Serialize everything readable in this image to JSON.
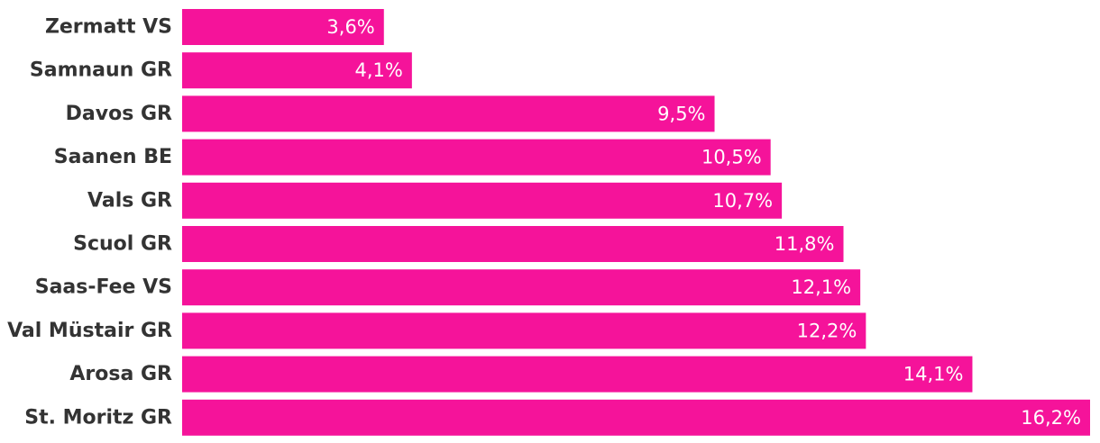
{
  "chart_data": {
    "type": "bar",
    "orientation": "horizontal",
    "categories": [
      "Zermatt VS",
      "Samnaun GR",
      "Davos GR",
      "Saanen BE",
      "Vals GR",
      "Scuol GR",
      "Saas-Fee VS",
      "Val Müstair GR",
      "Arosa GR",
      "St. Moritz GR"
    ],
    "values": [
      3.6,
      4.1,
      9.5,
      10.5,
      10.7,
      11.8,
      12.1,
      12.2,
      14.1,
      16.2
    ],
    "value_labels": [
      "3,6%",
      "4,1%",
      "9,5%",
      "10,5%",
      "10,7%",
      "11,8%",
      "12,1%",
      "12,2%",
      "14,1%",
      "16,2%"
    ],
    "title": "",
    "xlabel": "",
    "ylabel": "",
    "xlim": [
      0,
      16.2
    ],
    "grid": false,
    "legend": "none",
    "bar_color": "#f5139a"
  }
}
